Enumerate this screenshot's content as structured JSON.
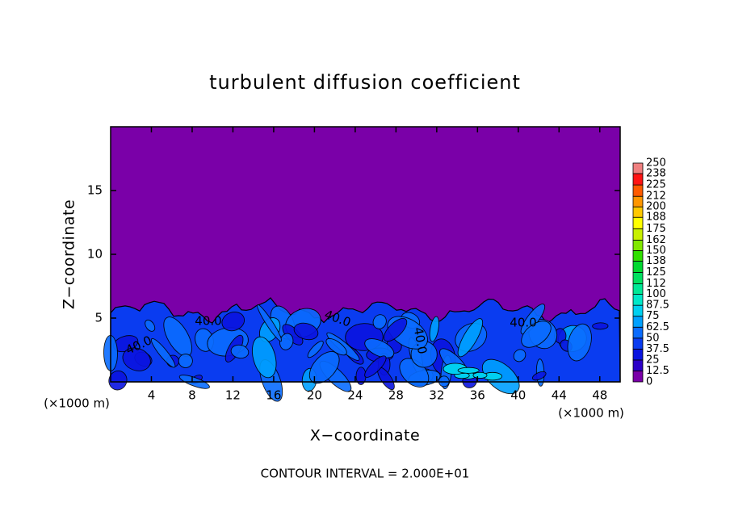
{
  "chart_data": {
    "type": "contour",
    "title": "turbulent diffusion coefficient",
    "xlabel": "X−coordinate",
    "ylabel": "Z−coordinate",
    "x_unit": "(×1000 m)",
    "y_unit": "(×1000 m)",
    "note": "CONTOUR INTERVAL = 2.000E+01",
    "xlim": [
      0,
      50
    ],
    "ylim": [
      0,
      20
    ],
    "xticks": [
      4,
      8,
      12,
      16,
      20,
      24,
      28,
      32,
      36,
      40,
      44,
      48
    ],
    "yticks": [
      5,
      10,
      15
    ],
    "contour_labels": [
      "40.0",
      "40.0",
      "40.0",
      "40.0",
      "40.0"
    ],
    "colorbar": {
      "levels": [
        0,
        12.5,
        25,
        37.5,
        50,
        62.5,
        75,
        87.5,
        100,
        112,
        125,
        138,
        150,
        162,
        175,
        188,
        200,
        212,
        225,
        238,
        250
      ],
      "colors": [
        "#7a00a8",
        "#2c00c8",
        "#0a14e0",
        "#0a3cf0",
        "#0a6cff",
        "#00a0ff",
        "#00d0f0",
        "#00e8c8",
        "#00e896",
        "#00e060",
        "#00d830",
        "#30e000",
        "#80e800",
        "#c8f000",
        "#ffff00",
        "#ffc800",
        "#ff9600",
        "#ff5a00",
        "#ff1414",
        "#f08080"
      ]
    }
  }
}
